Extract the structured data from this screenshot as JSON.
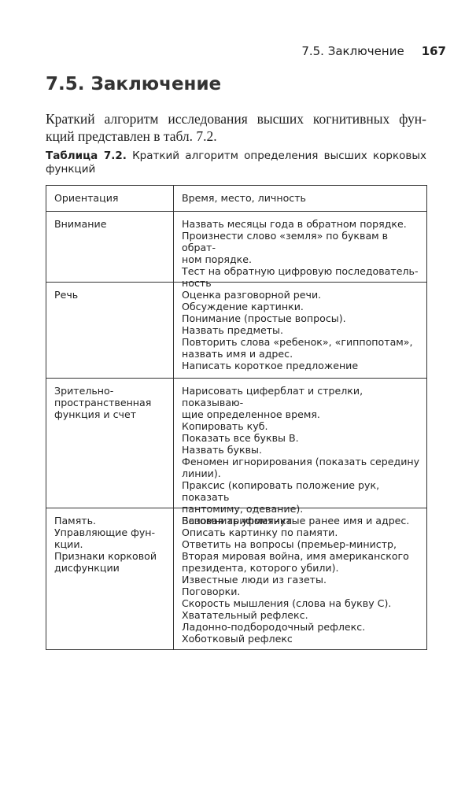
{
  "header": {
    "running_title": "7.5. Заключение",
    "page_number": "167"
  },
  "section": {
    "title": "7.5. Заключение"
  },
  "paragraph": {
    "lines": [
      "Краткий алгоритм исследования высших когнитивных фун-",
      "кций представлен в табл. 7.2."
    ]
  },
  "caption": {
    "label": "Таблица 7.2.",
    "lines": [
      "Краткий алгоритм определения высших корковых",
      "функций"
    ]
  },
  "table": {
    "rows": [
      [
        [
          "Ориентация"
        ],
        [
          "Время, место, личность"
        ]
      ],
      [
        [
          "Внимание"
        ],
        [
          "Назвать месяцы года в обратном порядке.",
          "Произнести слово «земля» по буквам в обрат-",
          "ном порядке.",
          "Тест на обратную цифровую последователь-",
          "ность"
        ]
      ],
      [
        [
          "Речь"
        ],
        [
          "Оценка разговорной речи.",
          "Обсуждение картинки.",
          "Понимание (простые вопросы).",
          "Назвать предметы.",
          "Повторить слова «ребенок», «гиппопотам»,",
          "назвать имя и адрес.",
          "Написать короткое предложение"
        ]
      ],
      [
        [
          "Зрительно-",
          "пространственная",
          "функция и счет"
        ],
        [
          "Нарисовать циферблат и стрелки, показываю-",
          "щие определенное время.",
          "Копировать куб.",
          "Показать все буквы В.",
          "Назвать буквы.",
          "Феномен игнорирования (показать середину",
          "линии).",
          "Праксис (копировать положение рук, показать",
          "пантомиму, одевание).",
          "Базовая арифметика"
        ]
      ],
      [
        [
          "Память.",
          "Управляющие фун-",
          "кции.",
          "Признаки корковой",
          "дисфункции"
        ],
        [
          "Вспомнить упомянутые ранее имя и адрес.",
          "Описать картинку по памяти.",
          "Ответить на вопросы (премьер-министр,",
          "Вторая мировая война, имя американского",
          "президента, которого убили).",
          "Известные люди из газеты.",
          "Поговорки.",
          "Скорость мышления (слова на букву С).",
          "Хватательный рефлекс.",
          "Ладонно-подбородочный рефлекс.",
          "Хоботковый рефлекс"
        ]
      ]
    ]
  }
}
